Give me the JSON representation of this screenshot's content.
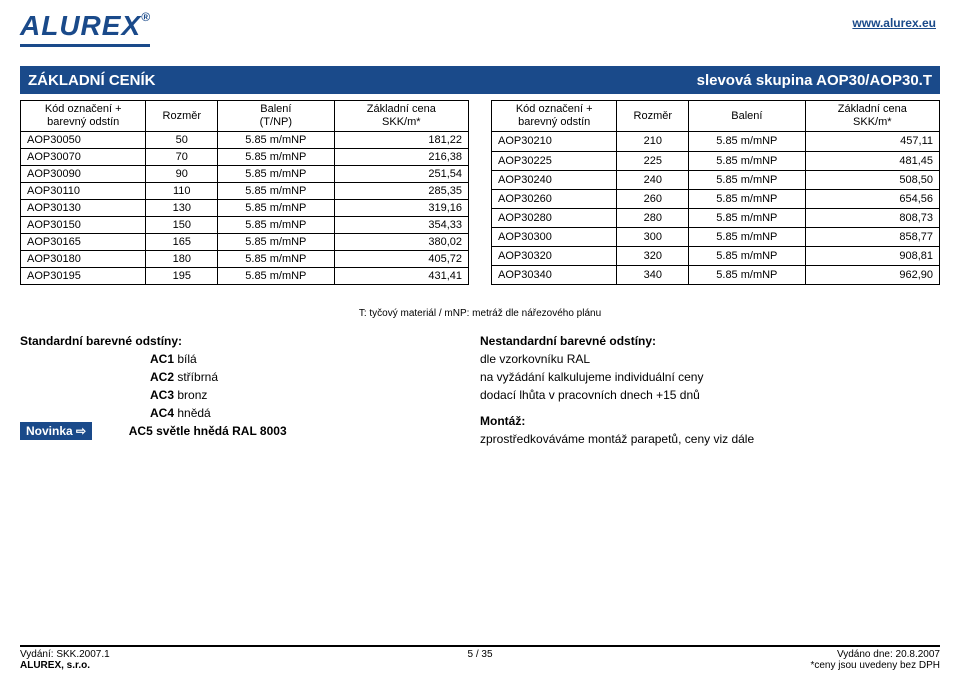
{
  "header": {
    "logo_text": "ALUREX",
    "website": "www.alurex.eu",
    "title_left": "ZÁKLADNÍ CENÍK",
    "title_right": "slevová skupina AOP30/AOP30.T"
  },
  "table": {
    "columns": [
      {
        "label": "Kód označení +\nbarevný odstín",
        "width": "28%"
      },
      {
        "label": "Rozměr",
        "width": "16%"
      },
      {
        "label": "Balení\n(T/NP)",
        "width": "26%"
      },
      {
        "label": "Základní cena\nSKK/m*",
        "width": "30%"
      }
    ],
    "columns_right": [
      {
        "label": "Kód označení +\nbarevný odstín"
      },
      {
        "label": "Rozměr"
      },
      {
        "label": "Balení"
      },
      {
        "label": "Základní cena\nSKK/m*"
      }
    ],
    "left_rows": [
      [
        "AOP30050",
        "50",
        "5.85 m/mNP",
        "181,22"
      ],
      [
        "AOP30070",
        "70",
        "5.85 m/mNP",
        "216,38"
      ],
      [
        "AOP30090",
        "90",
        "5.85 m/mNP",
        "251,54"
      ],
      [
        "AOP30110",
        "110",
        "5.85 m/mNP",
        "285,35"
      ],
      [
        "AOP30130",
        "130",
        "5.85 m/mNP",
        "319,16"
      ],
      [
        "AOP30150",
        "150",
        "5.85 m/mNP",
        "354,33"
      ],
      [
        "AOP30165",
        "165",
        "5.85 m/mNP",
        "380,02"
      ],
      [
        "AOP30180",
        "180",
        "5.85 m/mNP",
        "405,72"
      ],
      [
        "AOP30195",
        "195",
        "5.85 m/mNP",
        "431,41"
      ]
    ],
    "right_rows": [
      [
        "AOP30210",
        "210",
        "5.85 m/mNP",
        "457,11"
      ],
      [
        "AOP30225",
        "225",
        "5.85 m/mNP",
        "481,45"
      ],
      [
        "AOP30240",
        "240",
        "5.85 m/mNP",
        "508,50"
      ],
      [
        "AOP30260",
        "260",
        "5.85 m/mNP",
        "654,56"
      ],
      [
        "AOP30280",
        "280",
        "5.85 m/mNP",
        "808,73"
      ],
      [
        "AOP30300",
        "300",
        "5.85 m/mNP",
        "858,77"
      ],
      [
        "AOP30320",
        "320",
        "5.85 m/mNP",
        "908,81"
      ],
      [
        "AOP30340",
        "340",
        "5.85 m/mNP",
        "962,90"
      ]
    ],
    "footnote": "T: tyčový materiál / mNP: metráž dle nářezového plánu"
  },
  "info": {
    "left_heading": "Standardní barevné odstíny:",
    "left_items": [
      {
        "code": "AC1",
        "label": "bílá"
      },
      {
        "code": "AC2",
        "label": "stříbrná"
      },
      {
        "code": "AC3",
        "label": "bronz"
      },
      {
        "code": "AC4",
        "label": "hnědá"
      },
      {
        "code": "AC5",
        "label": "světle hnědá RAL 8003"
      }
    ],
    "novinka_label": "Novinka",
    "novinka_arrow": "⇨",
    "right_heading": "Nestandardní barevné odstíny:",
    "right_lines": [
      "dle vzorkovníku RAL",
      "na vyžádání kalkulujeme individuální ceny",
      "dodací lhůta v pracovních dnech +15 dnů"
    ],
    "montaz_heading": "Montáž:",
    "montaz_line": "zprostředkováváme montáž parapetů, ceny viz dále"
  },
  "footer": {
    "left_line1": "Vydání: SKK.2007.1",
    "left_line2": "ALUREX, s.r.o.",
    "center": "5 / 35",
    "right_line1": "Vydáno dne: 20.8.2007",
    "right_line2": "*ceny jsou uvedeny bez DPH"
  }
}
